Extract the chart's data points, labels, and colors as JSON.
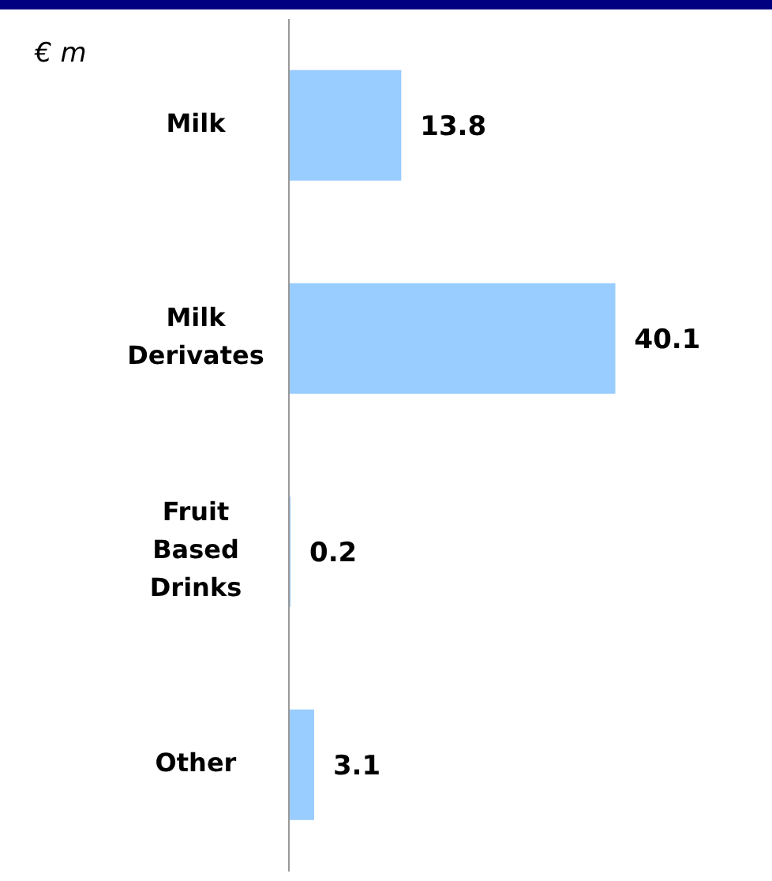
{
  "chart_data": {
    "type": "bar",
    "orientation": "horizontal",
    "categories": [
      "Milk",
      "Milk Derivates",
      "Fruit Based Drinks",
      "Other"
    ],
    "values": [
      13.8,
      40.1,
      0.2,
      3.1
    ],
    "color": "#99ccff",
    "data_labels": true,
    "annotations": [
      "€ m"
    ]
  }
}
